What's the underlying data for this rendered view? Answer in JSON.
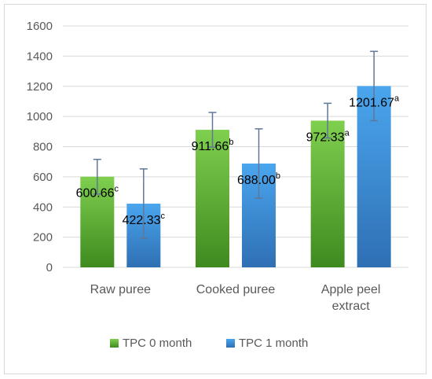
{
  "colors": {
    "series0_light": "#7fcf4f",
    "series0_dark": "#3f8a1f",
    "series1_light": "#4aa6ee",
    "series1_dark": "#2f6fb4",
    "errorbar": "#5f7897",
    "gridline": "#d9d9d9",
    "axis_text": "#595959"
  },
  "chart_data": {
    "type": "bar",
    "title": "",
    "xlabel": "",
    "ylabel": "",
    "ylim": [
      0,
      1600
    ],
    "yticks": [
      0,
      200,
      400,
      600,
      800,
      1000,
      1200,
      1400,
      1600
    ],
    "grid": true,
    "legend_position": "bottom",
    "categories": [
      [
        "Raw puree"
      ],
      [
        "Cooked puree"
      ],
      [
        "Apple peel",
        "extract"
      ]
    ],
    "series": [
      {
        "name": "TPC 0 month",
        "values": [
          600.66,
          911.66,
          972.33
        ],
        "errors": [
          115,
          115,
          115
        ],
        "labels": [
          "600.66",
          "911.66",
          "972.33"
        ],
        "superscripts": [
          "c",
          "b",
          "a"
        ]
      },
      {
        "name": "TPC 1 month",
        "values": [
          422.33,
          688.0,
          1201.67
        ],
        "errors": [
          230,
          230,
          230
        ],
        "labels": [
          "422.33",
          "688.00",
          "1201.67"
        ],
        "superscripts": [
          "c",
          "b",
          "a"
        ]
      }
    ]
  }
}
